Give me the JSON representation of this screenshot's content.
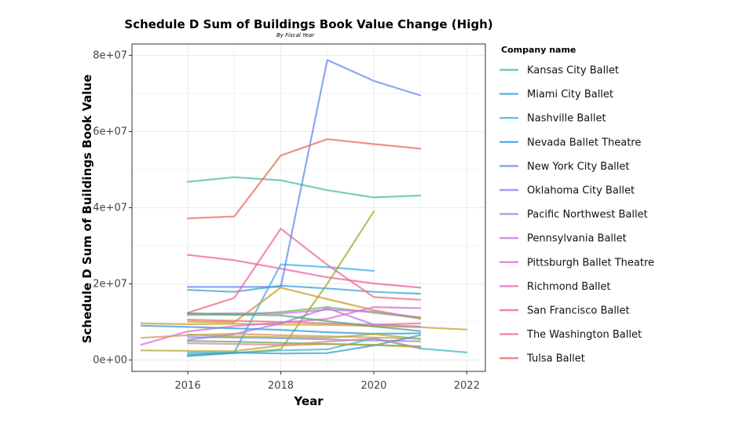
{
  "chart_data": {
    "type": "line",
    "title": "Schedule D Sum of Buildings Book Value Change (High)",
    "subtitle": "By Fiscal Year",
    "xlabel": "Year",
    "ylabel": "Schedule D Sum of Buildings Book Value",
    "xlim": [
      2014.8,
      2022.4
    ],
    "ylim": [
      -3000000,
      83000000
    ],
    "x_ticks": [
      2016,
      2018,
      2020,
      2022
    ],
    "y_ticks": [
      0,
      20000000,
      40000000,
      60000000,
      80000000
    ],
    "y_tick_labels": [
      "0e+00",
      "2e+07",
      "4e+07",
      "6e+07",
      "8e+07"
    ],
    "grid": true,
    "legend_title": "Company name",
    "legend_position": "right",
    "legend": [
      {
        "name": "Kansas City Ballet",
        "color": "#4DBBAA"
      },
      {
        "name": "Miami City Ballet",
        "color": "#3BA3DB"
      },
      {
        "name": "Nashville Ballet",
        "color": "#3CB0E6"
      },
      {
        "name": "Nevada Ballet Theatre",
        "color": "#3399E0"
      },
      {
        "name": "New York City Ballet",
        "color": "#6688F0"
      },
      {
        "name": "Oklahoma City Ballet",
        "color": "#8E85EE"
      },
      {
        "name": "Pacific Northwest Ballet",
        "color": "#AE7BEA"
      },
      {
        "name": "Pennsylvania Ballet",
        "color": "#CC72E4"
      },
      {
        "name": "Pittsburgh Ballet Theatre",
        "color": "#DE6BD6"
      },
      {
        "name": "Richmond Ballet",
        "color": "#EA64C3"
      },
      {
        "name": "San Francisco Ballet",
        "color": "#EF5FA6"
      },
      {
        "name": "The Washington Ballet",
        "color": "#F06A8C"
      },
      {
        "name": "Tulsa Ballet",
        "color": "#EC6A5C"
      }
    ],
    "series": [
      {
        "color": "#4DBBAA",
        "x": [
          2016,
          2017,
          2018,
          2019,
          2020,
          2021
        ],
        "y": [
          46800000,
          48000000,
          47200000,
          44600000,
          42700000,
          43200000
        ]
      },
      {
        "color": "#6688F0",
        "x": [
          2016,
          2017,
          2018,
          2019,
          2020,
          2021
        ],
        "y": [
          19200000,
          19200000,
          19200000,
          78800000,
          73300000,
          69500000
        ]
      },
      {
        "color": "#EC6A5C",
        "x": [
          2016,
          2017,
          2018,
          2019,
          2020,
          2021
        ],
        "y": [
          37200000,
          37700000,
          53700000,
          58000000,
          56700000,
          55500000
        ]
      },
      {
        "color": "#EF5FA6",
        "x": [
          2016,
          2017,
          2018,
          2019,
          2020,
          2021
        ],
        "y": [
          27600000,
          26200000,
          24000000,
          21700000,
          20100000,
          19000000
        ]
      },
      {
        "color": "#3CB0E6",
        "x": [
          2016,
          2017,
          2018,
          2019,
          2020
        ],
        "y": [
          2000000,
          2000000,
          25100000,
          24400000,
          23400000
        ]
      },
      {
        "color": "#3BA3DB",
        "x": [
          2016,
          2017,
          2018,
          2019,
          2020,
          2021
        ],
        "y": [
          18400000,
          17900000,
          19500000,
          18800000,
          17900000,
          17400000
        ]
      },
      {
        "color": "#F06A8C",
        "x": [
          2016,
          2017,
          2018,
          2019,
          2020,
          2021
        ],
        "y": [
          12400000,
          16300000,
          34500000,
          25000000,
          16500000,
          15800000
        ]
      },
      {
        "color": "#9AAE2A",
        "x": [
          2016,
          2017,
          2018,
          2019,
          2020
        ],
        "y": [
          1500000,
          1800000,
          2800000,
          20000000,
          39000000
        ]
      },
      {
        "color": "#CC9A24",
        "x": [
          2016,
          2017,
          2018,
          2019,
          2020,
          2021
        ],
        "y": [
          10100000,
          9900000,
          19000000,
          16000000,
          13100000,
          10800000
        ]
      },
      {
        "color": "#C8A02A",
        "x": [
          2015,
          2016,
          2017,
          2018,
          2019,
          2020,
          2021,
          2022
        ],
        "y": [
          9600000,
          9400000,
          9500000,
          9300000,
          9200000,
          8900000,
          8600000,
          8000000
        ]
      },
      {
        "color": "#7AB850",
        "x": [
          2016,
          2017,
          2018,
          2019,
          2020,
          2021
        ],
        "y": [
          11800000,
          11900000,
          12600000,
          13900000,
          12400000,
          11000000
        ]
      },
      {
        "color": "#CC72E4",
        "x": [
          2016,
          2017,
          2018,
          2019,
          2020,
          2021
        ],
        "y": [
          12100000,
          12300000,
          12200000,
          13200000,
          12700000,
          11200000
        ]
      },
      {
        "color": "#DE6BD6",
        "x": [
          2015,
          2016,
          2017,
          2018,
          2019,
          2020,
          2021
        ],
        "y": [
          4000000,
          7500000,
          8900000,
          9800000,
          10800000,
          13900000,
          13600000
        ]
      },
      {
        "color": "#E8707A",
        "x": [
          2016,
          2017,
          2018,
          2019,
          2020,
          2021
        ],
        "y": [
          10600000,
          10300000,
          10000000,
          9600000,
          9300000,
          9600000
        ]
      },
      {
        "color": "#AE7BEA",
        "x": [
          2016,
          2017,
          2018,
          2019,
          2020,
          2021
        ],
        "y": [
          5300000,
          6800000,
          9600000,
          13600000,
          9300000,
          8800000
        ]
      },
      {
        "color": "#4CA880",
        "x": [
          2016,
          2017,
          2018,
          2019,
          2020,
          2021
        ],
        "y": [
          12300000,
          11900000,
          11700000,
          10200000,
          8800000,
          7600000
        ]
      },
      {
        "color": "#3399E0",
        "x": [
          2015,
          2016,
          2017,
          2018,
          2019,
          2020,
          2021
        ],
        "y": [
          9000000,
          8700000,
          8300000,
          7900000,
          7300000,
          6900000,
          7000000
        ]
      },
      {
        "color": "#D59A5A",
        "x": [
          2015,
          2016,
          2017,
          2018,
          2019,
          2020,
          2021
        ],
        "y": [
          5800000,
          6500000,
          6900000,
          6500000,
          6200000,
          5900000,
          5600000
        ]
      },
      {
        "color": "#8E85EE",
        "x": [
          2016,
          2017,
          2018,
          2019,
          2020,
          2021
        ],
        "y": [
          6000000,
          5900000,
          5700000,
          5400000,
          5100000,
          4900000
        ]
      },
      {
        "color": "#A8B040",
        "x": [
          2016,
          2017,
          2018,
          2019,
          2020,
          2021
        ],
        "y": [
          6700000,
          6200000,
          6000000,
          5800000,
          6800000,
          5500000
        ]
      },
      {
        "color": "#5AAA7A",
        "x": [
          2016,
          2017,
          2018,
          2019,
          2020,
          2021
        ],
        "y": [
          5000000,
          4800000,
          4500000,
          4200000,
          3900000,
          3600000
        ]
      },
      {
        "color": "#44B8C8",
        "x": [
          2016,
          2017,
          2018,
          2019,
          2020,
          2021,
          2022
        ],
        "y": [
          1000000,
          1800000,
          2500000,
          2800000,
          5700000,
          3000000,
          2000000
        ]
      },
      {
        "color": "#3A9FCF",
        "x": [
          2016,
          2017,
          2018,
          2019,
          2020,
          2021
        ],
        "y": [
          1200000,
          1900000,
          1700000,
          1800000,
          3800000,
          6500000
        ]
      },
      {
        "color": "#B4A838",
        "x": [
          2015,
          2016,
          2017,
          2018,
          2019,
          2020,
          2021
        ],
        "y": [
          2500000,
          2400000,
          2300000,
          3800000,
          4200000,
          4000000,
          3400000
        ]
      },
      {
        "color": "#D98A88",
        "x": [
          2016,
          2017,
          2018,
          2019,
          2020,
          2021
        ],
        "y": [
          4400000,
          4200000,
          4000000,
          4800000,
          5600000,
          3200000
        ]
      }
    ]
  }
}
